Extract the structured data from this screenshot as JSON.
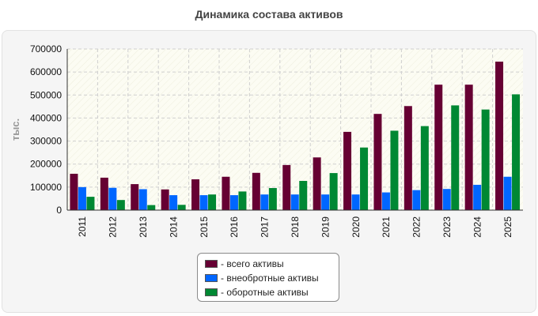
{
  "page": {
    "title": "Динамика состава активов"
  },
  "chart_data": {
    "type": "bar",
    "title": "Динамика состава активов",
    "xlabel": "",
    "ylabel": "тыс.",
    "ylim": [
      0,
      700000
    ],
    "yticks": [
      0,
      100000,
      200000,
      300000,
      400000,
      500000,
      600000,
      700000
    ],
    "grid": true,
    "legend_position": "bottom",
    "categories": [
      "2011",
      "2012",
      "2013",
      "2014",
      "2015",
      "2016",
      "2017",
      "2018",
      "2019",
      "2020",
      "2021",
      "2022",
      "2023",
      "2024",
      "2025"
    ],
    "series": [
      {
        "name": "- всего активы",
        "color": "#660033",
        "values": [
          158000,
          141000,
          113000,
          90000,
          134000,
          145000,
          162000,
          196000,
          229000,
          340000,
          418000,
          452000,
          545000,
          545000,
          645000
        ]
      },
      {
        "name": "- внеобротные активы",
        "color": "#0066ff",
        "values": [
          100000,
          97000,
          91000,
          65000,
          65000,
          65000,
          68000,
          68000,
          68000,
          68000,
          77000,
          87000,
          92000,
          110000,
          145000
        ]
      },
      {
        "name": "- оборотные активы",
        "color": "#008833",
        "values": [
          58000,
          44000,
          22000,
          23000,
          68000,
          81000,
          96000,
          127000,
          161000,
          272000,
          345000,
          365000,
          455000,
          437000,
          503000
        ]
      }
    ]
  }
}
